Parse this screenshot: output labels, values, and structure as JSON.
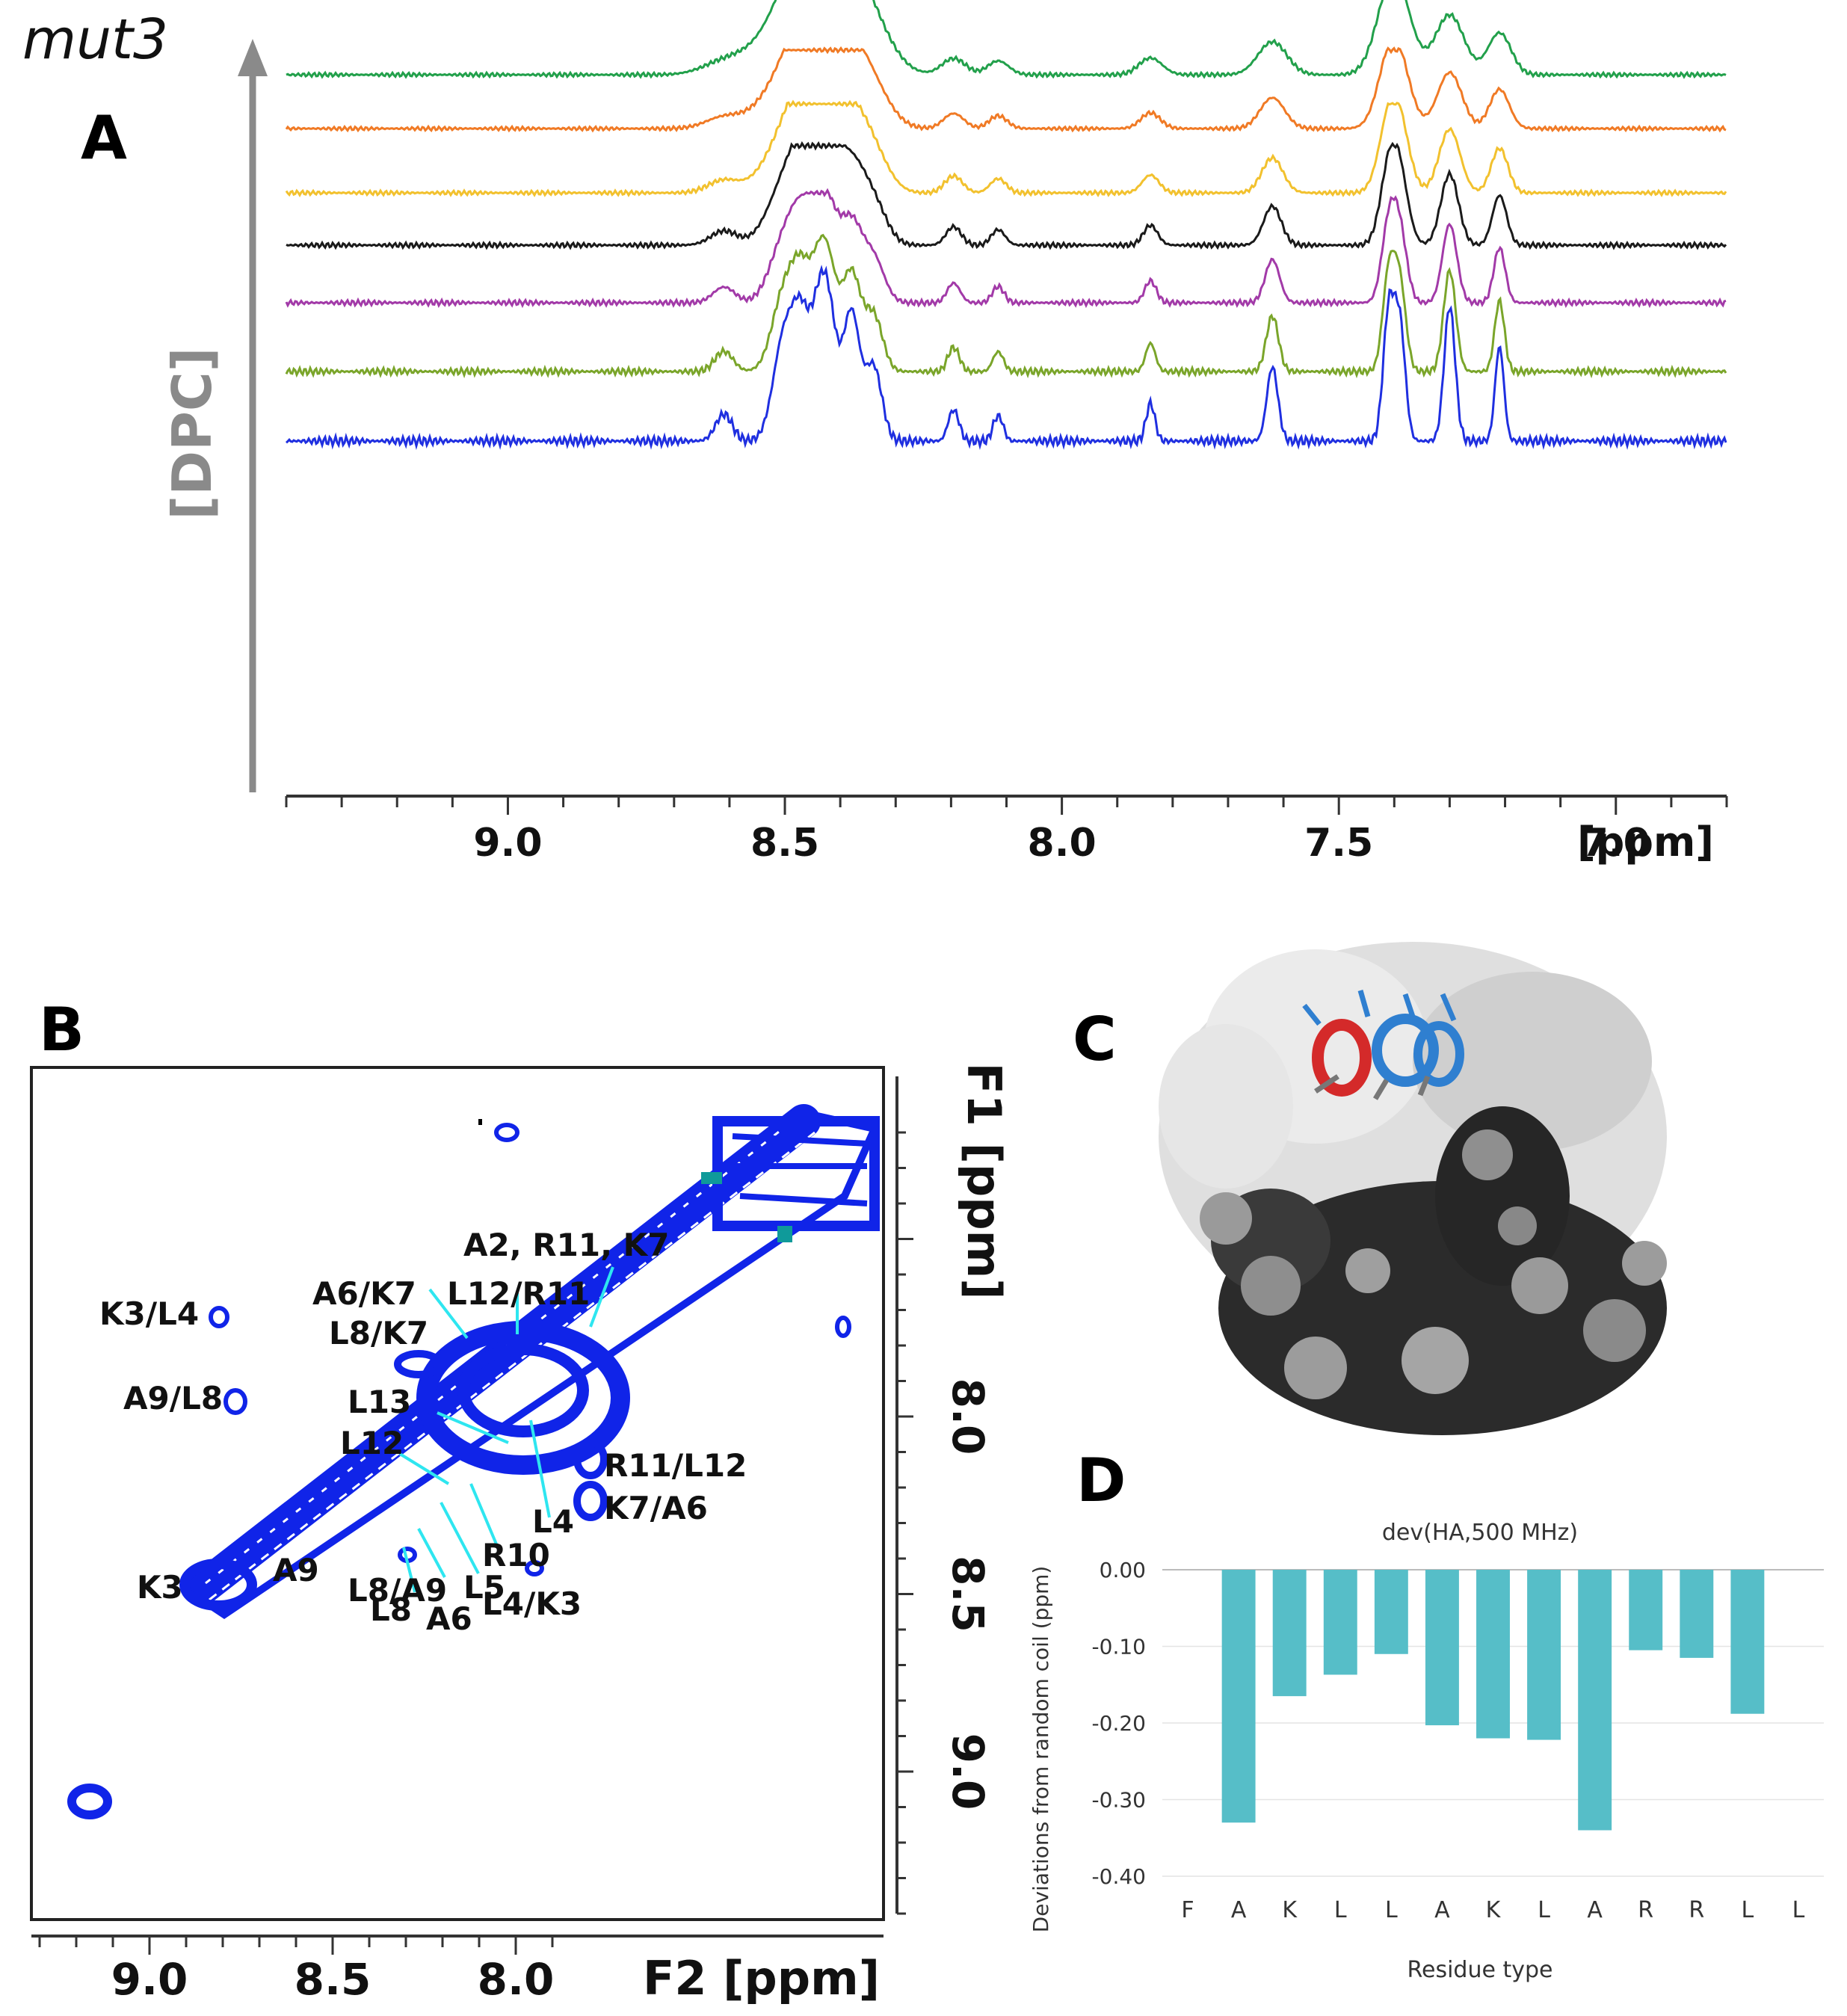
{
  "figure_title": "mut3",
  "panel_a": {
    "label": "A",
    "y_axis_label": "[DPC]",
    "x_axis_label": "[ppm]",
    "x_ticks": [
      "9.0",
      "8.5",
      "8.0",
      "7.5",
      "7.0"
    ],
    "x_tick_values": [
      9.0,
      8.5,
      8.0,
      7.5,
      7.0
    ],
    "x_range_ppm": [
      9.4,
      6.8
    ],
    "series": [
      {
        "name": "trace-1",
        "color": "#22a04b"
      },
      {
        "name": "trace-2",
        "color": "#f07a25"
      },
      {
        "name": "trace-3",
        "color": "#f2c12e"
      },
      {
        "name": "trace-4",
        "color": "#1a1a1a"
      },
      {
        "name": "trace-5",
        "color": "#a23aa8"
      },
      {
        "name": "trace-6",
        "color": "#7aa52a"
      },
      {
        "name": "trace-7",
        "color": "#1f2fe0"
      }
    ]
  },
  "panel_b": {
    "label": "B",
    "x_axis_label": "F2 [ppm]",
    "y_axis_label": "F1 [ppm]",
    "x_ticks": [
      "9.0",
      "8.5",
      "8.0"
    ],
    "x_tick_values": [
      9.0,
      8.5,
      8.0
    ],
    "y_ticks": [
      "8.0",
      "8.5",
      "9.0"
    ],
    "y_tick_values": [
      8.0,
      8.5,
      9.0
    ],
    "contour_color": "#1024e8",
    "annotation_color": "#2ee6f0",
    "cross_peak_labels": [
      {
        "text": "A2, R11, K7"
      },
      {
        "text": "L12/R11"
      },
      {
        "text": "A6/K7"
      },
      {
        "text": "L8/K7"
      },
      {
        "text": "L13"
      },
      {
        "text": "L12"
      },
      {
        "text": "L4"
      },
      {
        "text": "R10"
      },
      {
        "text": "L5"
      },
      {
        "text": "L8"
      },
      {
        "text": "A6"
      },
      {
        "text": "K3/L4"
      },
      {
        "text": "A9/L8"
      },
      {
        "text": "R11/L12"
      },
      {
        "text": "K7/A6"
      },
      {
        "text": "K3"
      },
      {
        "text": "A9"
      },
      {
        "text": "L8/A9"
      },
      {
        "text": "L4/K3"
      }
    ]
  },
  "panel_c": {
    "label": "C"
  },
  "panel_d": {
    "label": "D",
    "chart_data": {
      "type": "bar",
      "title": "dev(HA,500 MHz)",
      "xlabel": "Residue type",
      "ylabel": "Deviations from random coil (ppm)",
      "categories": [
        "F",
        "A",
        "K",
        "L",
        "L",
        "A",
        "K",
        "L",
        "A",
        "R",
        "R",
        "L",
        "L"
      ],
      "values": [
        null,
        -0.33,
        -0.165,
        -0.137,
        -0.11,
        -0.203,
        -0.22,
        -0.222,
        -0.34,
        -0.105,
        -0.115,
        -0.188,
        null
      ],
      "ylim": [
        -0.4,
        0.0
      ],
      "y_ticks": [
        "0.00",
        "-0.10",
        "-0.20",
        "-0.30",
        "-0.40"
      ],
      "y_tick_values": [
        0.0,
        -0.1,
        -0.2,
        -0.3,
        -0.4
      ],
      "bar_color": "#56bec8",
      "grid": true
    }
  }
}
